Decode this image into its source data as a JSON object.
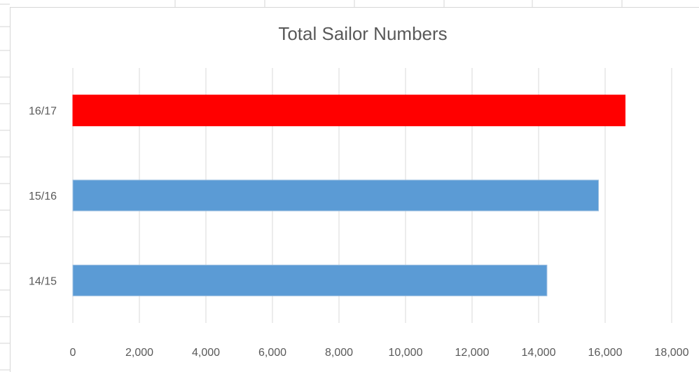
{
  "chart_data": {
    "type": "bar",
    "orientation": "horizontal",
    "title": "Total Sailor Numbers",
    "categories": [
      "14/15",
      "15/16",
      "16/17"
    ],
    "values": [
      14250,
      15800,
      16600
    ],
    "bar_colors": [
      "#5b9bd5",
      "#5b9bd5",
      "#ff0000"
    ],
    "xlim": [
      0,
      18000
    ],
    "x_ticks": [
      "0",
      "2,000",
      "4,000",
      "6,000",
      "8,000",
      "10,000",
      "12,000",
      "14,000",
      "16,000",
      "18,000"
    ],
    "grid": true,
    "legend": false
  }
}
